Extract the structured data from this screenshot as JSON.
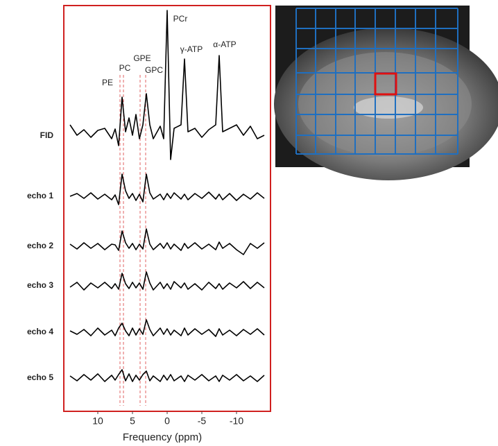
{
  "chart_data": {
    "type": "line",
    "x_label": "Frequency (ppm)",
    "xlim": [
      15,
      -15
    ],
    "xticks": [
      10,
      5,
      0,
      -5,
      -10
    ],
    "x": [
      14,
      13,
      12,
      11,
      10,
      9,
      8,
      7.5,
      7,
      6.5,
      6,
      5.5,
      5,
      4.5,
      4,
      3.5,
      3,
      2.5,
      2,
      1,
      0.5,
      0,
      -0.5,
      -1,
      -2,
      -2.5,
      -3,
      -4,
      -5,
      -6,
      -7,
      -7.5,
      -8,
      -9,
      -10,
      -11,
      -12,
      -13,
      -14
    ],
    "series": [
      {
        "name": "FID",
        "color": "#000000",
        "values": [
          1,
          -0.5,
          0.3,
          -0.8,
          0.2,
          0.5,
          -1,
          0.4,
          -2,
          5,
          0,
          2,
          -0.5,
          2.5,
          -1,
          1,
          5.5,
          1,
          -1,
          0.8,
          -1,
          17.5,
          -4,
          0.5,
          1,
          10.5,
          0,
          0.5,
          -0.8,
          0.3,
          1,
          11,
          0,
          0.5,
          1,
          -0.5,
          0.8,
          -1,
          -0.5
        ]
      },
      {
        "name": "echo 1",
        "color": "#000000",
        "values": [
          0,
          0.4,
          -0.3,
          0.5,
          -0.4,
          0.3,
          -0.5,
          0.2,
          -1.2,
          3.2,
          0.8,
          -0.3,
          0.4,
          -0.6,
          0.3,
          -0.8,
          3.2,
          0.5,
          -0.4,
          0.3,
          -0.5,
          0.4,
          -0.3,
          0.5,
          -0.4,
          0.3,
          -0.5,
          0.4,
          -0.3,
          0.6,
          -0.4,
          0.3,
          -0.5,
          0.4,
          -0.6,
          0.3,
          -0.4,
          0.5,
          -0.3
        ]
      },
      {
        "name": "echo 2",
        "color": "#000000",
        "values": [
          0.3,
          -0.4,
          0.5,
          -0.3,
          0.4,
          -0.5,
          0.3,
          0.2,
          -0.6,
          2.2,
          0.5,
          -0.3,
          0.4,
          -0.5,
          0.3,
          -0.4,
          2.5,
          0.3,
          -0.5,
          0.4,
          -0.3,
          0.5,
          -0.4,
          0.3,
          -0.6,
          0.4,
          -0.3,
          0.5,
          -0.4,
          0.3,
          -0.5,
          0.6,
          -0.3,
          0.4,
          -0.5,
          -1.2,
          0.4,
          -0.3,
          0.5
        ]
      },
      {
        "name": "echo 3",
        "color": "#000000",
        "values": [
          -0.2,
          0.5,
          -0.6,
          0.4,
          -0.3,
          0.5,
          -0.4,
          0.3,
          -0.5,
          1.8,
          0.3,
          -0.4,
          0.5,
          -0.3,
          0.4,
          -0.5,
          2,
          0.4,
          -0.6,
          0.5,
          -0.4,
          0.3,
          -0.5,
          0.6,
          -0.3,
          0.4,
          -0.5,
          0.3,
          -0.6,
          0.5,
          -0.4,
          0.3,
          -0.5,
          0.4,
          -0.3,
          0.6,
          -0.4,
          0.5,
          -0.3
        ]
      },
      {
        "name": "echo 4",
        "color": "#000000",
        "values": [
          0.2,
          -0.3,
          0.4,
          -0.5,
          0.6,
          -0.4,
          0.3,
          -0.5,
          0.6,
          1.3,
          0.2,
          -0.5,
          0.6,
          -0.4,
          0.5,
          -0.3,
          1.8,
          0.4,
          -0.5,
          0.6,
          -0.3,
          0.5,
          -0.4,
          0.3,
          -0.5,
          0.6,
          -0.4,
          0.5,
          -0.3,
          0.4,
          -0.6,
          0.5,
          -0.4,
          0.3,
          -0.5,
          0.4,
          -0.3,
          0.5,
          -0.4
        ]
      },
      {
        "name": "echo 5",
        "color": "#000000",
        "values": [
          0.3,
          -0.4,
          0.5,
          -0.3,
          0.6,
          -0.5,
          0.4,
          -0.3,
          0.5,
          1.2,
          -0.4,
          0.6,
          -0.5,
          0.4,
          -0.3,
          0.5,
          1,
          -0.4,
          0.3,
          -0.5,
          0.4,
          -0.3,
          0.5,
          -0.4,
          0.3,
          -0.5,
          0.4,
          -0.3,
          0.5,
          -0.4,
          0.3,
          -0.5,
          0.4,
          -0.3,
          0.5,
          -0.4,
          0.3,
          -0.5,
          0.4
        ]
      }
    ],
    "annotations": [
      {
        "text": "PE",
        "x": 6.8,
        "line": true
      },
      {
        "text": "PC",
        "x": 6.3,
        "line": true
      },
      {
        "text": "GPE",
        "x": 3.9,
        "line": true
      },
      {
        "text": "GPC",
        "x": 3.1,
        "line": true
      },
      {
        "text": "PCr",
        "x": 0,
        "line": false
      },
      {
        "text": "γ-ATP",
        "x": -2.5,
        "line": false
      },
      {
        "text": "α-ATP",
        "x": -7.5,
        "line": false
      }
    ],
    "frame_color": "#d0201f",
    "guide_color": "#e06060"
  }
}
